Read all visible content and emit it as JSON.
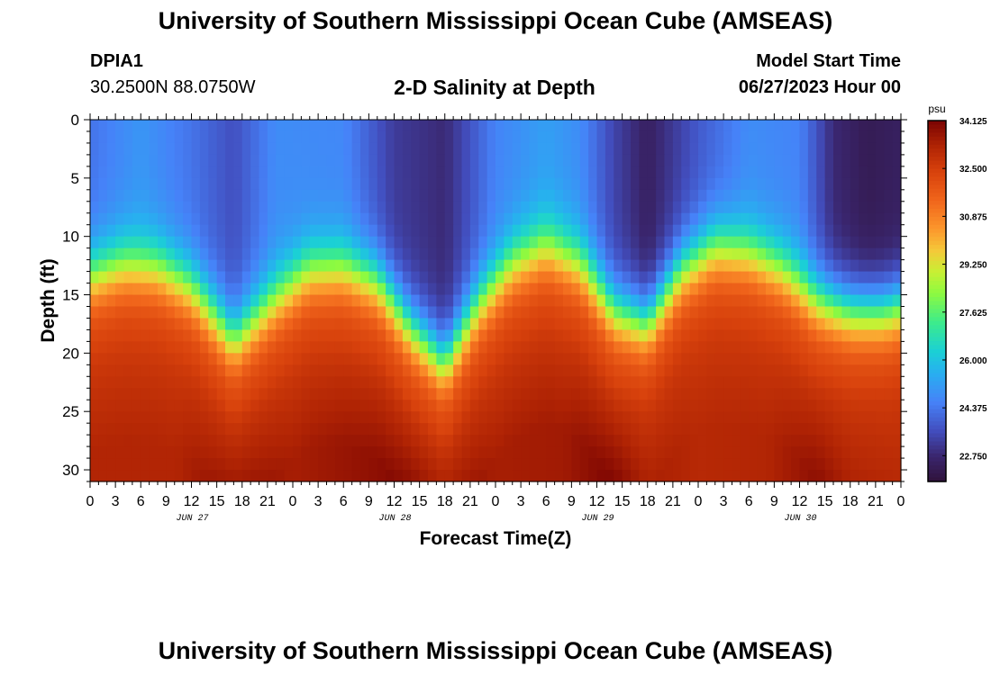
{
  "header": {
    "title": "University of Southern Mississippi Ocean Cube (AMSEAS)",
    "station_id": "DPIA1",
    "coordinates": "30.2500N  88.0750W",
    "subtitle": "2-D Salinity at Depth",
    "model_start_label": "Model Start Time",
    "model_start_value": "06/27/2023 Hour 00"
  },
  "footer": {
    "title": "University of Southern Mississippi Ocean Cube (AMSEAS)"
  },
  "chart_data": {
    "type": "heatmap",
    "title": "2-D Salinity at Depth",
    "xlabel": "Forecast Time(Z)",
    "ylabel": "Depth (ft)",
    "x_tick_labels": [
      "0",
      "3",
      "6",
      "9",
      "12",
      "15",
      "18",
      "21",
      "0",
      "3",
      "6",
      "9",
      "12",
      "15",
      "18",
      "21",
      "0",
      "3",
      "6",
      "9",
      "12",
      "15",
      "18",
      "21",
      "0",
      "3",
      "6",
      "9",
      "12",
      "15",
      "18",
      "21",
      "0"
    ],
    "day_labels": [
      {
        "label": "JUN 27",
        "hour": 12
      },
      {
        "label": "JUN 28",
        "hour": 36
      },
      {
        "label": "JUN 29",
        "hour": 60
      },
      {
        "label": "JUN 30",
        "hour": 84
      }
    ],
    "xlim": [
      0,
      96
    ],
    "ylim": [
      0,
      31
    ],
    "y_reversed": true,
    "y_ticks": [
      0,
      5,
      10,
      15,
      20,
      25,
      30
    ],
    "colorbar": {
      "unit": "psu",
      "range": [
        21.875,
        34.125
      ],
      "tick_labels": [
        "34.125",
        "32.500",
        "30.875",
        "29.250",
        "27.625",
        "26.000",
        "24.375",
        "22.750"
      ],
      "tick_values": [
        34.125,
        32.5,
        30.875,
        29.25,
        27.625,
        26.0,
        24.375,
        22.75
      ]
    },
    "halocline_depth_ft": {
      "hours": [
        0,
        4,
        8,
        12,
        17,
        22,
        26,
        30,
        34,
        38,
        42,
        46,
        50,
        54,
        58,
        62,
        66,
        70,
        74,
        78,
        82,
        86,
        90,
        94,
        96
      ],
      "values": [
        13.5,
        12.5,
        12.8,
        14.5,
        19.0,
        15.5,
        13.0,
        12.8,
        14.0,
        18.0,
        21.0,
        16.0,
        12.5,
        11.0,
        12.5,
        16.5,
        17.5,
        13.0,
        11.0,
        11.5,
        13.0,
        15.5,
        16.5,
        16.5,
        16.0
      ]
    },
    "surface_salinity_psu": {
      "hours": [
        0,
        6,
        12,
        17,
        22,
        30,
        36,
        42,
        48,
        54,
        58,
        62,
        66,
        72,
        78,
        84,
        88,
        92,
        96
      ],
      "values": [
        24.3,
        25.0,
        24.3,
        23.6,
        24.8,
        24.7,
        23.2,
        22.8,
        24.6,
        25.2,
        24.8,
        23.4,
        22.5,
        23.8,
        24.8,
        24.6,
        22.8,
        22.3,
        22.5
      ]
    },
    "bottom_salinity_psu": {
      "hours": [
        0,
        10,
        17,
        24,
        34,
        38,
        42,
        48,
        56,
        62,
        66,
        72,
        80,
        86,
        90,
        96
      ],
      "values": [
        33.2,
        33.2,
        33.9,
        33.4,
        33.8,
        34.1,
        33.9,
        33.4,
        33.5,
        34.1,
        33.4,
        33.1,
        33.2,
        33.8,
        33.3,
        33.1
      ]
    }
  }
}
